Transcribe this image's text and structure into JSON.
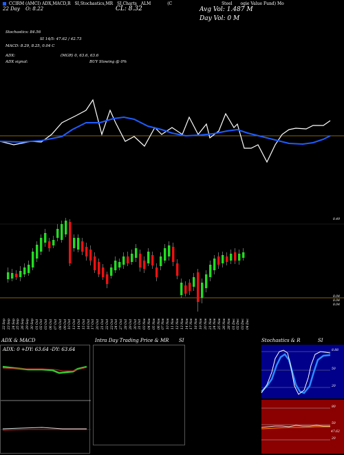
{
  "header": {
    "line1_items": [
      "CCIRM (AMCI)",
      "ADX,MACD,R",
      "SI,Stochastics,MR",
      "SI,Charts",
      "ALM",
      "(C",
      "Steel",
      "ogie Value Fund) Mo"
    ],
    "ticker_date": "22 Day",
    "ticker_open": "O: 8.22",
    "close_label": "CL: 8.32",
    "avg_vol": "Avg Vol: 1.487 M",
    "day_vol": "Day Vol: 0   M"
  },
  "indicators": {
    "stochastics": "Stochastics: 84.56",
    "rsi": "SI 14/5: 47.62 / 42.73",
    "macd": "MACD: 8.29, 8.25, 0.04  C",
    "adx": "ADX:",
    "mrsi": "(MGR) 0, 63.6, 63.6",
    "adx_signal_label": "ADX  signal:",
    "buy_signal": "BUY Slowing @ 0%"
  },
  "price_axis": {
    "top_label": "8.49",
    "bottom_labels": [
      "8.04",
      "8.04",
      "8.04"
    ]
  },
  "date_labels": [
    "22 Sep",
    "23 Sep",
    "24 Sep",
    "25 Sep",
    "26 Sep",
    "29 Sep",
    "30 Sep",
    "01 Oct",
    "02 Oct",
    "03 Oct",
    "06 Oct",
    "07 Oct",
    "08 Oct",
    "09 Oct",
    "10 Oct",
    "13 Oct",
    "14 Oct",
    "15 Oct",
    "16 Oct",
    "17 Oct",
    "20 Oct",
    "21 Oct",
    "22 Oct",
    "23 Oct",
    "24 Oct",
    "27 Oct",
    "28 Oct",
    "29 Oct",
    "30 Oct",
    "31 Oct",
    "03 Nov",
    "04 Nov",
    "05 Nov",
    "06 Nov",
    "07 Nov",
    "10 Nov",
    "11 Nov",
    "12 Nov",
    "13 Nov",
    "14 Nov",
    "17 Nov",
    "18 Nov",
    "19 Nov",
    "20 Nov",
    "21 Nov",
    "24 Nov",
    "25 Nov",
    "26 Nov",
    "28 Nov",
    "01 Dec",
    "02 Dec",
    "03 Dec",
    "04 Dec"
  ],
  "panels": {
    "adx_title": "ADX  & MACD",
    "adx_values": "ADX: 0   +DY: 63.64   -DY: 63.64",
    "intraday_title": "Intra  Day Trading Price  & MR",
    "intraday_title_right": "SI",
    "stoch_title": "Stochastics & R",
    "stoch_title_right": "SI",
    "stoch_ticks": [
      "8.88",
      "50",
      "20"
    ],
    "rsi_ticks": [
      "80",
      "50",
      "20"
    ],
    "rsi_value": "47.62"
  },
  "colors": {
    "ma_line": "#1e5cff",
    "up_candle": "#22dd22",
    "down_candle": "#ee1111",
    "panel_blue": "#00008b",
    "panel_red": "#8b0000",
    "adx_green": "#33cc33"
  }
}
